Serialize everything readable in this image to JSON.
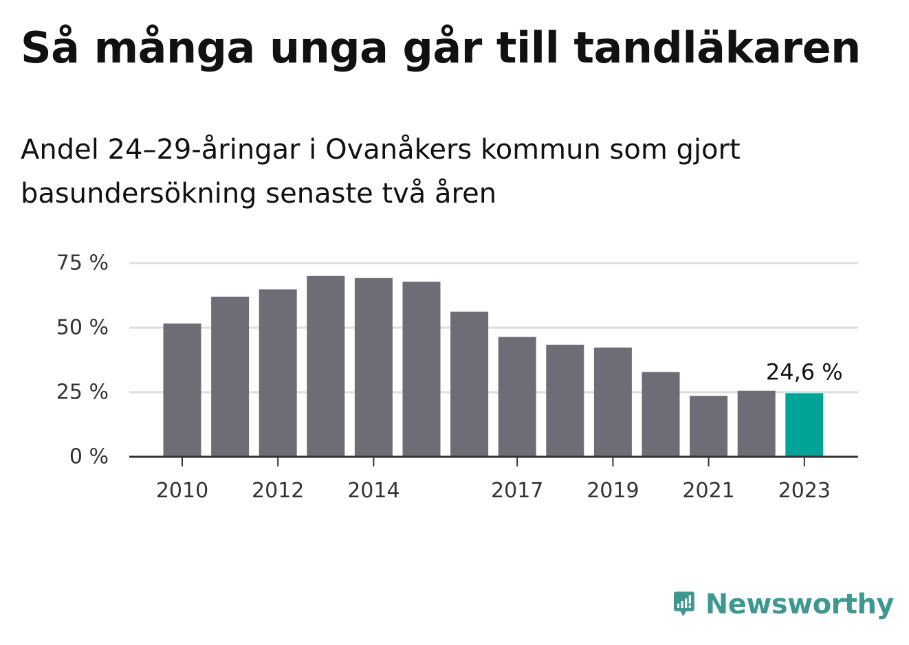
{
  "title": "Så många unga går till tandläkaren",
  "subtitle": "Andel 24–29-åringar i Ovanåkers kommun som gjort basundersökning senaste två åren",
  "brand": {
    "name": "Newsworthy",
    "color": "#3d9990",
    "icon": "bar-chart-speech-bubble-icon"
  },
  "colors": {
    "bar": "#6e6d75",
    "highlight": "#00a396",
    "grid": "#dddddd",
    "axis": "#333333"
  },
  "chart_data": {
    "type": "bar",
    "title": "Så många unga går till tandläkaren",
    "subtitle": "Andel 24–29-åringar i Ovanåkers kommun som gjort basundersökning senaste två åren",
    "xlabel": "",
    "ylabel": "",
    "categories": [
      "2010",
      "2011",
      "2012",
      "2013",
      "2014",
      "2015",
      "2016",
      "2017",
      "2018",
      "2019",
      "2020",
      "2021",
      "2022",
      "2023"
    ],
    "values": [
      51.6,
      62,
      64.8,
      70,
      69.2,
      67.8,
      56.2,
      46.4,
      43.4,
      42.3,
      32.8,
      23.6,
      25.6,
      24.6
    ],
    "x_tick_labels": [
      "2010",
      "2012",
      "2014",
      "2017",
      "2019",
      "2021",
      "2023"
    ],
    "y_ticks": [
      0,
      25,
      50,
      75
    ],
    "y_tick_labels": [
      "0 %",
      "25 %",
      "50 %",
      "75 %"
    ],
    "ylim": [
      0,
      75
    ],
    "grid": true,
    "highlight_index": 13,
    "annotation": "24,6 %"
  }
}
